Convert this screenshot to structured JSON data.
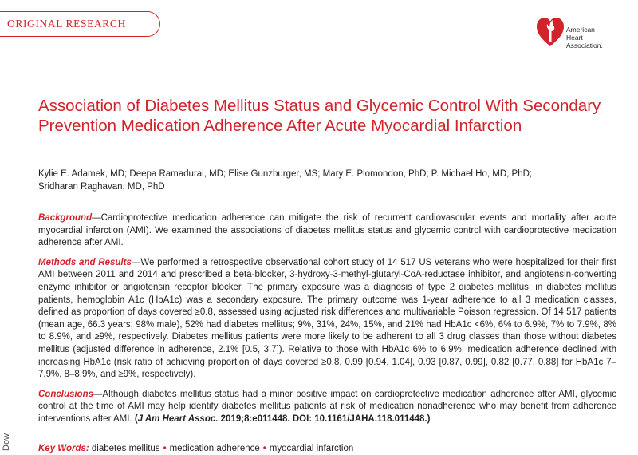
{
  "section_tab": {
    "label": "ORIGINAL RESEARCH"
  },
  "logo": {
    "text": "American\nHeart\nAssociation.",
    "icon": "heart-torch-icon",
    "color": "#d2232a"
  },
  "article": {
    "title": "Association of Diabetes Mellitus Status and Glycemic Control With Secondary Prevention Medication Adherence After Acute Myocardial Infarction",
    "authors_line1": "Kylie E. Adamek, MD; Deepa Ramadurai, MD; Elise Gunzburger, MS; Mary E. Plomondon, PhD; P. Michael Ho, MD, PhD;",
    "authors_line2": "Sridharan Raghavan, MD, PhD"
  },
  "abstract": {
    "background_heading": "Background",
    "background_text": "—Cardioprotective medication adherence can mitigate the risk of recurrent cardiovascular events and mortality after acute myocardial infarction (AMI). We examined the associations of diabetes mellitus status and glycemic control with cardioprotective medication adherence after AMI.",
    "methods_heading": "Methods and Results",
    "methods_text": "—We performed a retrospective observational cohort study of 14 517 US veterans who were hospitalized for their first AMI between 2011 and 2014 and prescribed a beta-blocker, 3-hydroxy-3-methyl-glutaryl-CoA-reductase inhibitor, and angiotensin-converting enzyme inhibitor or angiotensin receptor blocker. The primary exposure was a diagnosis of type 2 diabetes mellitus; in diabetes mellitus patients, hemoglobin A1c (HbA1c) was a secondary exposure. The primary outcome was 1-year adherence to all 3 medication classes, defined as proportion of days covered ≥0.8, assessed using adjusted risk differences and multivariable Poisson regression. Of 14 517 patients (mean age, 66.3 years; 98% male), 52% had diabetes mellitus; 9%, 31%, 24%, 15%, and 21% had HbA1c <6%, 6% to 6.9%, 7% to 7.9%, 8% to 8.9%, and ≥9%, respectively. Diabetes mellitus patients were more likely to be adherent to all 3 drug classes than those without diabetes mellitus (adjusted difference in adherence, 2.1% [0.5, 3.7]). Relative to those with HbA1c 6% to 6.9%, medication adherence declined with increasing HbA1c (risk ratio of achieving proportion of days covered ≥0.8, 0.99 [0.94, 1.04], 0.93 [0.87, 0.99], 0.82 [0.77, 0.88] for HbA1c 7–7.9%, 8–8.9%, and ≥9%, respectively).",
    "conclusions_heading": "Conclusions",
    "conclusions_text": "—Although diabetes mellitus status had a minor positive impact on cardioprotective medication adherence after AMI, glycemic control at the time of AMI may help identify diabetes mellitus patients at risk of medication nonadherence who may benefit from adherence interventions after AMI.",
    "citation_journal": "J Am Heart Assoc.",
    "citation_rest": "2019;8:e011448. DOI: 10.1161/JAHA.118.011448.)"
  },
  "keywords": {
    "heading": "Key Words:",
    "items": [
      "diabetes mellitus",
      "medication adherence",
      "myocardial infarction"
    ],
    "separator": "•"
  },
  "watermark": {
    "text": "Dow"
  }
}
